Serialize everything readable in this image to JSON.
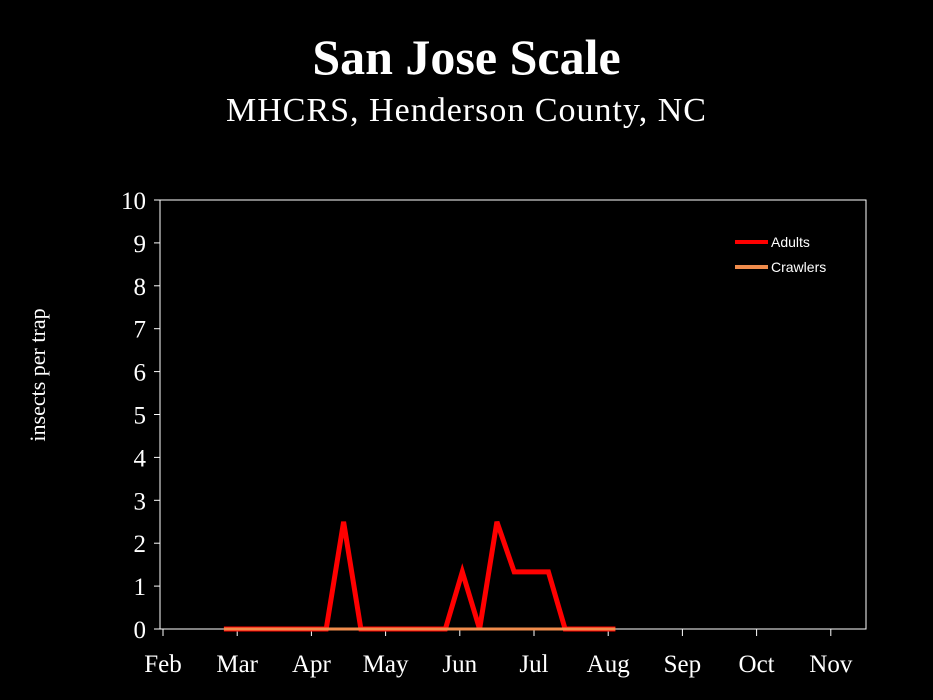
{
  "chart_data": {
    "type": "line",
    "title": "San Jose Scale",
    "subtitle": "MHCRS, Henderson County, NC",
    "xlabel": "",
    "ylabel": "insects per trap",
    "x_tick_labels": [
      "Feb",
      "Mar",
      "Apr",
      "May",
      "Jun",
      "Jul",
      "Aug",
      "Sep",
      "Oct",
      "Nov"
    ],
    "y_tick_labels": [
      "0",
      "1",
      "2",
      "3",
      "4",
      "5",
      "6",
      "7",
      "8",
      "9",
      "10"
    ],
    "ylim": [
      0,
      10
    ],
    "xlim": [
      "02-01",
      "11-28"
    ],
    "grid": false,
    "legend_position": "top-right",
    "x": [
      "02-24",
      "03-03",
      "03-10",
      "03-17",
      "03-24",
      "03-31",
      "04-07",
      "04-14",
      "04-21",
      "04-28",
      "05-05",
      "05-12",
      "05-19",
      "05-26",
      "06-02",
      "06-09",
      "06-16",
      "06-23",
      "06-30",
      "07-07",
      "07-14",
      "07-21",
      "07-28",
      "08-04"
    ],
    "series": [
      {
        "name": "Adults",
        "color": "#ff0000",
        "values": [
          0,
          0,
          0,
          0,
          0,
          0,
          0,
          2.5,
          0,
          0,
          0,
          0,
          0,
          0,
          1.33,
          0,
          2.5,
          1.33,
          1.33,
          1.33,
          0,
          0,
          0,
          0
        ]
      },
      {
        "name": "Crawlers",
        "color": "#f08c4c",
        "values": [
          0,
          0,
          0,
          0,
          0,
          0,
          0,
          0,
          0,
          0,
          0,
          0,
          0,
          0,
          0,
          0,
          0,
          0,
          0,
          0,
          0,
          0,
          0,
          0
        ]
      }
    ]
  }
}
